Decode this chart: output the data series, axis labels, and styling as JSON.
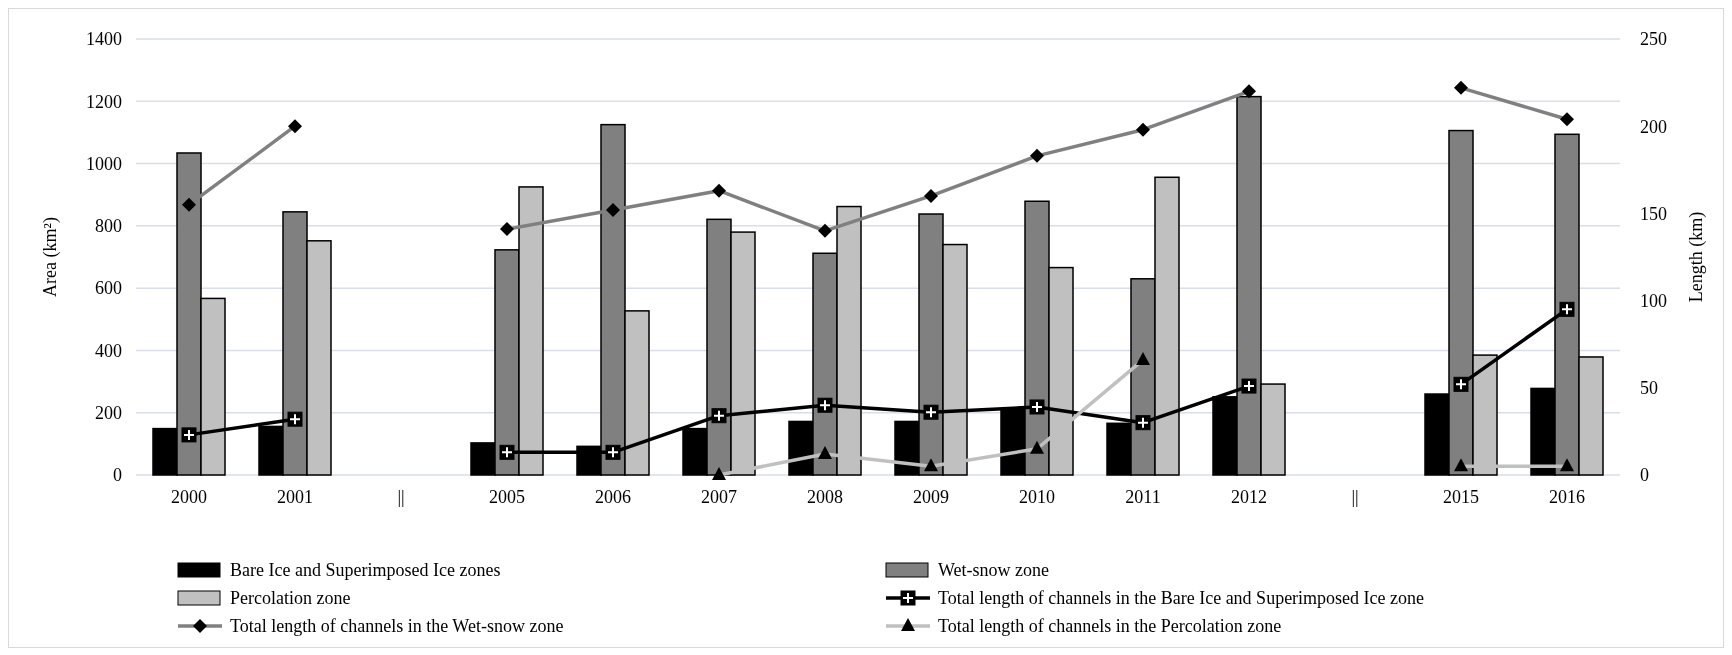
{
  "chart_data": {
    "type": "bar",
    "ylabel": "Area (km²)",
    "y2label": "Length (km)",
    "categories": [
      "2000",
      "2001",
      "||",
      "2005",
      "2006",
      "2007",
      "2008",
      "2009",
      "2010",
      "2011",
      "2012",
      "||",
      "2015",
      "2016"
    ],
    "series": [
      {
        "name": "Bare Ice and Superimposed Ice zones",
        "color": "#000000",
        "values": [
          149,
          156,
          null,
          103,
          92,
          149,
          172,
          172,
          212,
          166,
          251,
          null,
          260,
          278
        ]
      },
      {
        "name": "Wet-snow zone",
        "color": "#808080",
        "values": [
          1034,
          845,
          null,
          723,
          1125,
          821,
          712,
          838,
          879,
          630,
          1215,
          null,
          1106,
          1094
        ]
      },
      {
        "name": "Percolation zone",
        "color": "#c0c0c0",
        "values": [
          567,
          752,
          null,
          925,
          527,
          780,
          862,
          740,
          666,
          956,
          292,
          null,
          385,
          379
        ]
      },
      {
        "name": "Total length of channels in the Bare Ice and Superimposed Ice zone",
        "type": "line",
        "axis": "y2",
        "color": "#000000",
        "marker": "square",
        "values": [
          23,
          32,
          null,
          13,
          13,
          34,
          40,
          36,
          39,
          30,
          51,
          null,
          52,
          95
        ]
      },
      {
        "name": "Total length of channels in the Wet-snow zone",
        "type": "line",
        "axis": "y2",
        "color": "#808080",
        "marker": "diamond",
        "values": [
          155,
          200,
          null,
          141,
          152,
          163,
          140,
          160,
          183,
          198,
          220,
          null,
          222,
          204
        ]
      },
      {
        "name": "Total length of channels in the Percolation zone",
        "type": "line",
        "axis": "y2",
        "color": "#c0c0c0",
        "marker": "triangle",
        "values": [
          null,
          null,
          null,
          null,
          null,
          0,
          12,
          5,
          15,
          66,
          null,
          null,
          5,
          5
        ]
      }
    ],
    "ylim": [
      0,
      1400
    ],
    "yticks": [
      0,
      200,
      400,
      600,
      800,
      1000,
      1200,
      1400
    ],
    "y2lim": [
      0,
      250
    ],
    "y2ticks": [
      0,
      50,
      100,
      150,
      200,
      250
    ],
    "grid": "y",
    "legend": "bottom"
  }
}
